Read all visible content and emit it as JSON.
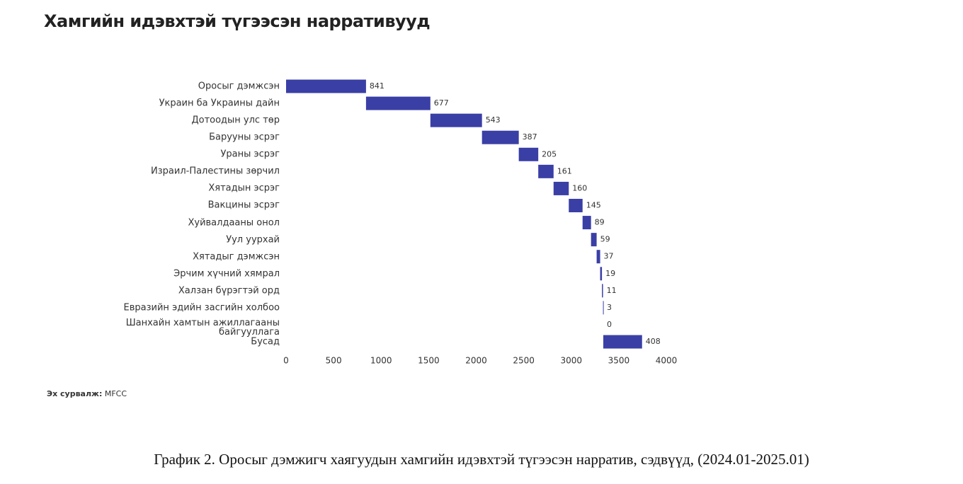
{
  "chart_data": {
    "type": "waterfall",
    "title": "Хамгийн идэвхтэй түгээсэн нарративууд",
    "categories": [
      "Оросыг дэмжсэн",
      "Украин ба Украины дайн",
      "Дотоодын улс төр",
      "Барууны эсрэг",
      "Ураны эсрэг",
      "Израил-Палестины зөрчил",
      "Хятадын эсрэг",
      "Вакцины эсрэг",
      "Хуйвалдааны онол",
      "Уул уурхай",
      "Хятадыг дэмжсэн",
      "Эрчим хүчний хямрал",
      "Халзан бүрэгтэй орд",
      "Евразийн эдийн засгийн холбоо",
      "Шанхайн хамтын ажиллагааны байгууллага",
      "Бусад"
    ],
    "values": [
      841,
      677,
      543,
      387,
      205,
      161,
      160,
      145,
      89,
      59,
      37,
      19,
      11,
      3,
      0,
      408
    ],
    "color": "#3a3fa6",
    "xlim": [
      0,
      4000
    ],
    "xticks": [
      0,
      500,
      1000,
      1500,
      2000,
      2500,
      3000,
      3500,
      4000
    ]
  },
  "source_label": "Эх сурвалж:",
  "source": "MFCC",
  "caption": "График 2. Оросыг дэмжигч хаягуудын хамгийн идэвхтэй түгээсэн нарратив, сэдвүүд, (2024.01-2025.01)"
}
